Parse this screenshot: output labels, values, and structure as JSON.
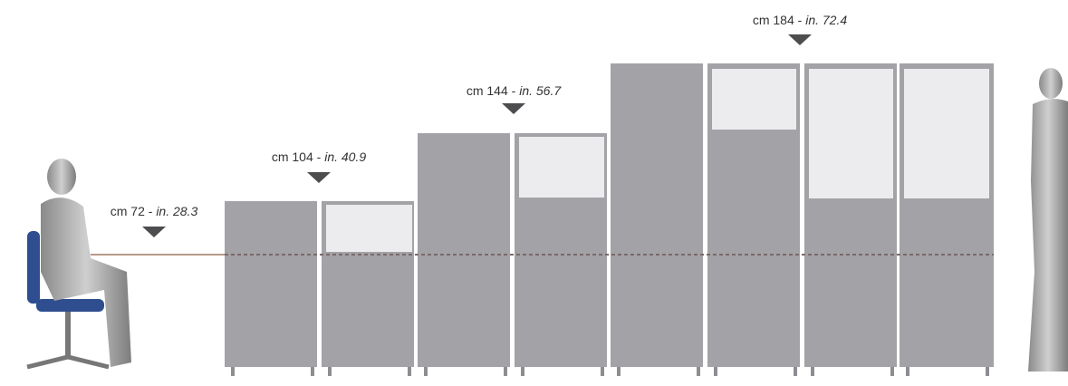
{
  "dimensions": [
    {
      "cm": "cm 72 -",
      "inch": "in. 28.3"
    },
    {
      "cm": "cm 104 -",
      "inch": "in. 40.9"
    },
    {
      "cm": "cm 144 -",
      "inch": "in. 56.7"
    },
    {
      "cm": "cm 184 -",
      "inch": "in. 72.4"
    }
  ]
}
